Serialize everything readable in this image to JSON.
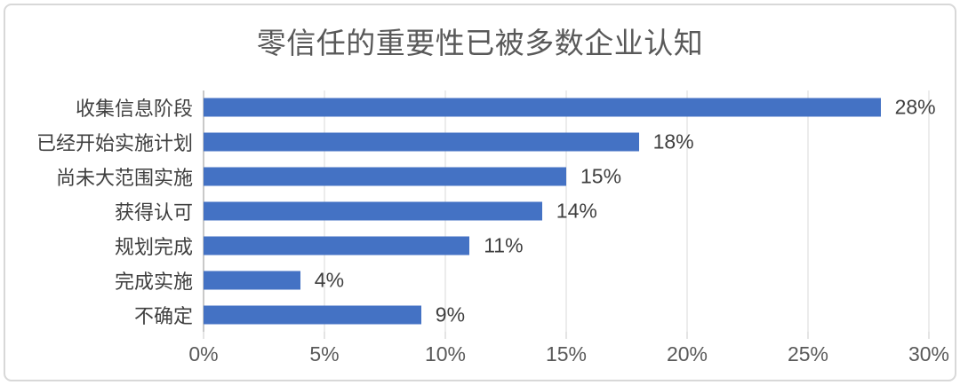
{
  "title": "零信任的重要性已被多数企业认知",
  "colors": {
    "bar": "#4472C4",
    "grid": "#D9D9D9",
    "axis": "#C9C9C9",
    "border": "#D8D8D8",
    "title_text": "#595959",
    "label_text": "#3F3F3F",
    "tick_text": "#595959"
  },
  "chart_data": {
    "type": "bar",
    "orientation": "horizontal",
    "title": "零信任的重要性已被多数企业认知",
    "categories": [
      "收集信息阶段",
      "已经开始实施计划",
      "尚未大范围实施",
      "获得认可",
      "规划完成",
      "完成实施",
      "不确定"
    ],
    "values": [
      28,
      18,
      15,
      14,
      11,
      4,
      9
    ],
    "data_labels": [
      "28%",
      "18%",
      "15%",
      "14%",
      "11%",
      "4%",
      "9%"
    ],
    "xlabel": "",
    "ylabel": "",
    "xlim": [
      0,
      30
    ],
    "x_tick_values": [
      0,
      5,
      10,
      15,
      20,
      25,
      30
    ],
    "x_tick_labels": [
      "0%",
      "5%",
      "10%",
      "15%",
      "20%",
      "25%",
      "30%"
    ],
    "grid": "vertical-only",
    "legend": "none"
  }
}
